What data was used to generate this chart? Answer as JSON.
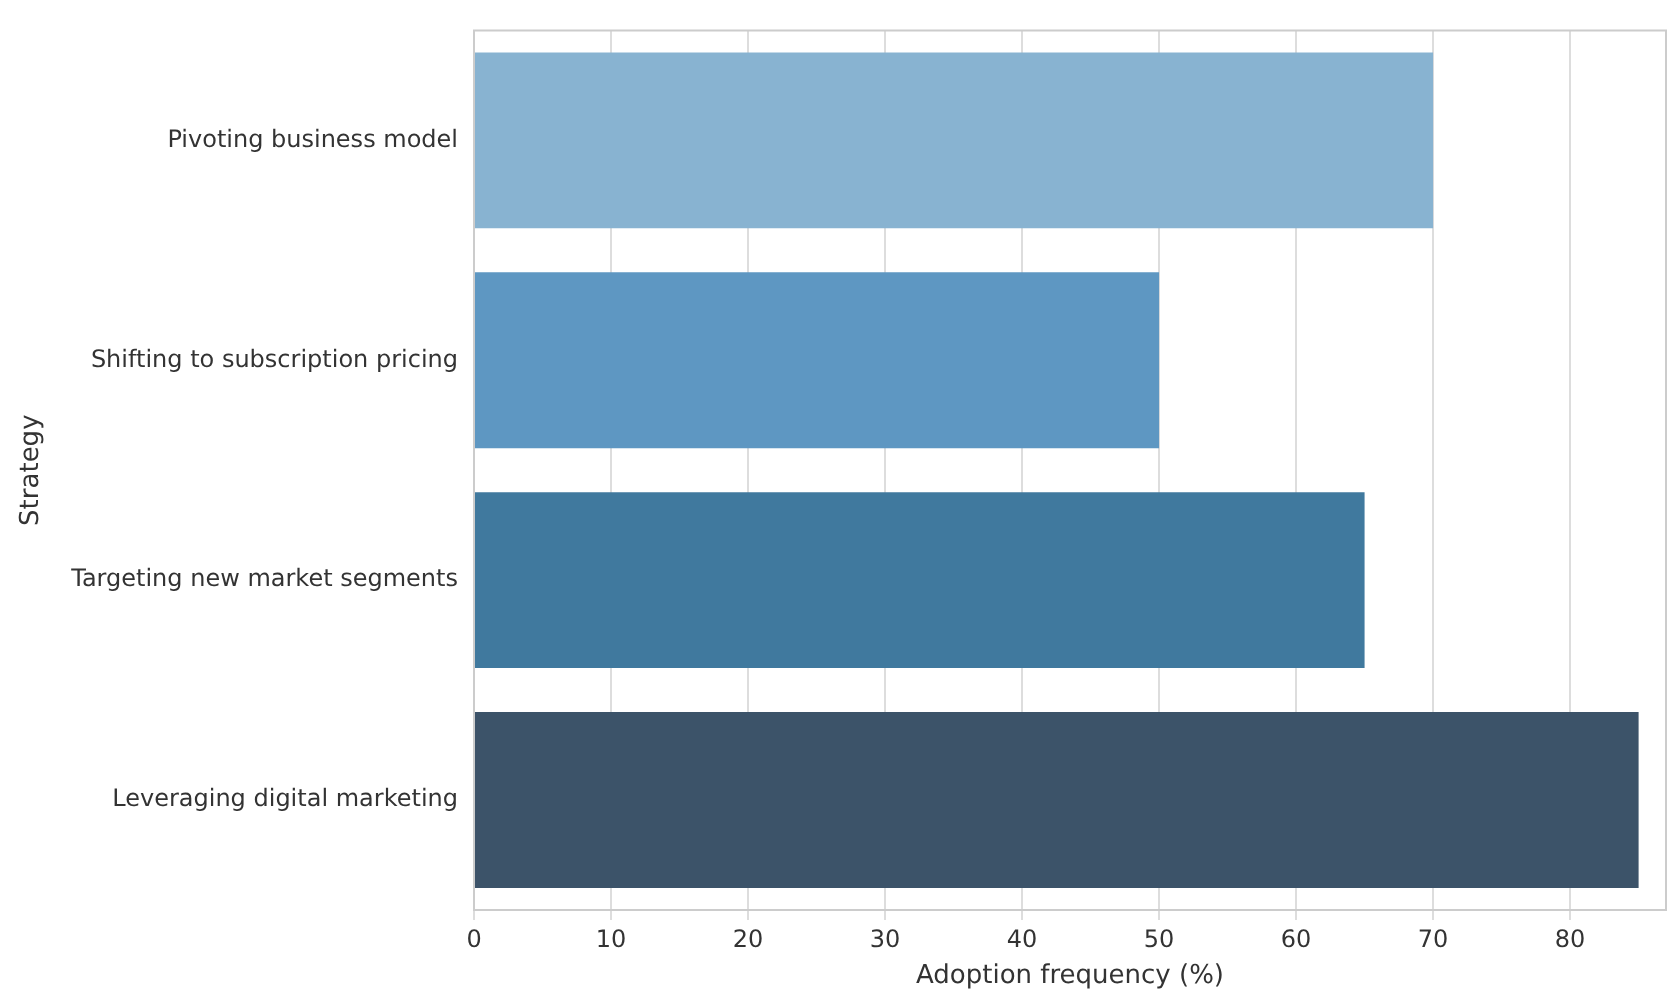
{
  "chart_data": {
    "type": "bar",
    "orientation": "horizontal",
    "xlabel": "Adoption frequency (%)",
    "ylabel": "Strategy",
    "categories": [
      "Pivoting business model",
      "Shifting to subscription pricing",
      "Targeting new market segments",
      "Leveraging digital marketing"
    ],
    "values": [
      70,
      50,
      65,
      85
    ],
    "colors": [
      "#88b3d1",
      "#5e97c2",
      "#40799e",
      "#3c5369"
    ],
    "xlim": [
      0,
      87
    ],
    "xticks": [
      0,
      10,
      20,
      30,
      40,
      50,
      60,
      70,
      80
    ],
    "grid": "x",
    "legend": false
  }
}
